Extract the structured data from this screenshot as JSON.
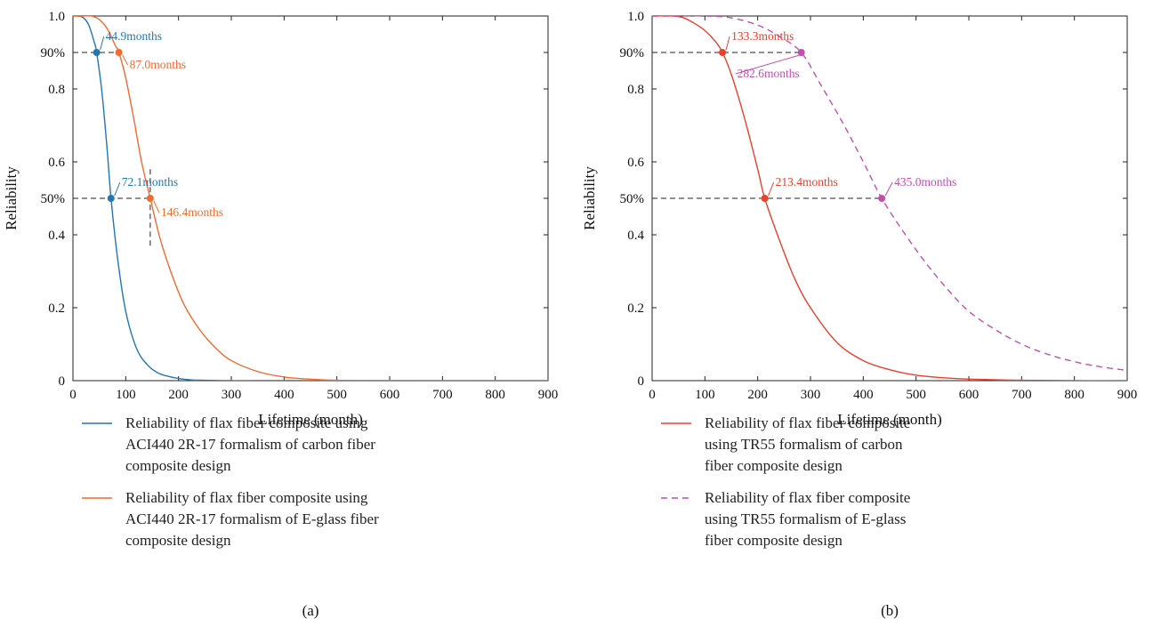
{
  "colors": {
    "blue": "#1f77b4",
    "orange": "#f26a2e",
    "red": "#e8412b",
    "magenta": "#c24fb0",
    "axis": "#222222",
    "guide": "#222222"
  },
  "chart_data": [
    {
      "type": "line",
      "subplot_label": "(a)",
      "xlabel": "Lifetime (month)",
      "ylabel": "Reliability",
      "xlim": [
        0,
        900
      ],
      "ylim": [
        0,
        1
      ],
      "xticks": [
        0,
        100,
        200,
        300,
        400,
        500,
        600,
        700,
        800,
        900
      ],
      "yticks": [
        {
          "value": 0,
          "label": "0"
        },
        {
          "value": 0.2,
          "label": "0.2"
        },
        {
          "value": 0.4,
          "label": "0.4"
        },
        {
          "value": 0.5,
          "label": "50%"
        },
        {
          "value": 0.6,
          "label": "0.6"
        },
        {
          "value": 0.8,
          "label": "0.8"
        },
        {
          "value": 0.9,
          "label": "90%"
        },
        {
          "value": 1.0,
          "label": "1.0"
        }
      ],
      "grid": false,
      "legend_position": "below plot",
      "series": [
        {
          "name": "Reliability of flax fiber composite using ACI440 2R-17 formalism of carbon fiber composite design",
          "legend_lines": [
            "Reliability of flax fiber composite using",
            "ACI440 2R-17 formalism of carbon fiber",
            "composite design"
          ],
          "color_key": "blue",
          "dash": false,
          "x": [
            0,
            10,
            20,
            30,
            40,
            44.9,
            55,
            65,
            72.1,
            85,
            100,
            120,
            140,
            160,
            180,
            200,
            225,
            250,
            300,
            350,
            900
          ],
          "y": [
            1.0,
            1.0,
            0.995,
            0.975,
            0.93,
            0.9,
            0.79,
            0.63,
            0.5,
            0.33,
            0.19,
            0.09,
            0.045,
            0.022,
            0.012,
            0.006,
            0.002,
            0.001,
            0,
            0,
            0
          ]
        },
        {
          "name": "Reliability of flax fiber composite using ACI440 2R-17 formalism of E-glass fiber composite design",
          "legend_lines": [
            "Reliability of flax fiber composite using",
            "ACI440 2R-17 formalism of E-glass fiber",
            "composite design"
          ],
          "color_key": "orange",
          "dash": false,
          "x": [
            0,
            20,
            35,
            50,
            65,
            80,
            87,
            100,
            115,
            130,
            146.4,
            165,
            185,
            210,
            240,
            270,
            300,
            350,
            400,
            450,
            500,
            600,
            900
          ],
          "y": [
            1.0,
            1.0,
            1.0,
            0.99,
            0.965,
            0.92,
            0.9,
            0.83,
            0.72,
            0.6,
            0.5,
            0.39,
            0.3,
            0.21,
            0.14,
            0.09,
            0.055,
            0.025,
            0.01,
            0.004,
            0.001,
            0,
            0
          ]
        }
      ],
      "markers": [
        {
          "x": 44.9,
          "y": 0.9,
          "series": 0,
          "label": "44.9months",
          "color_key": "blue"
        },
        {
          "x": 87.0,
          "y": 0.9,
          "series": 1,
          "label": "87.0months",
          "color_key": "orange"
        },
        {
          "x": 72.1,
          "y": 0.5,
          "series": 0,
          "label": "72.1months",
          "color_key": "blue"
        },
        {
          "x": 146.4,
          "y": 0.5,
          "series": 1,
          "label": "146.4months",
          "color_key": "orange"
        }
      ]
    },
    {
      "type": "line",
      "subplot_label": "(b)",
      "xlabel": "Lifetime (month)",
      "ylabel": "Reliability",
      "xlim": [
        0,
        900
      ],
      "ylim": [
        0,
        1
      ],
      "xticks": [
        0,
        100,
        200,
        300,
        400,
        500,
        600,
        700,
        800,
        900
      ],
      "yticks": [
        {
          "value": 0,
          "label": "0"
        },
        {
          "value": 0.2,
          "label": "0.2"
        },
        {
          "value": 0.4,
          "label": "0.4"
        },
        {
          "value": 0.5,
          "label": "50%"
        },
        {
          "value": 0.6,
          "label": "0.6"
        },
        {
          "value": 0.8,
          "label": "0.8"
        },
        {
          "value": 0.9,
          "label": "90%"
        },
        {
          "value": 1.0,
          "label": "1.0"
        }
      ],
      "grid": false,
      "legend_position": "below plot",
      "series": [
        {
          "name": "Reliability of flax fiber composite using TR55 formalism of carbon fiber composite design",
          "legend_lines": [
            "Reliability of flax fiber composite",
            "using TR55 formalism of carbon",
            "fiber composite design"
          ],
          "color_key": "red",
          "dash": false,
          "x": [
            0,
            40,
            60,
            80,
            100,
            120,
            133.3,
            150,
            175,
            200,
            213.4,
            240,
            270,
            300,
            350,
            400,
            450,
            500,
            550,
            600,
            700,
            800,
            900
          ],
          "y": [
            1.0,
            1.0,
            0.995,
            0.98,
            0.96,
            0.93,
            0.9,
            0.84,
            0.72,
            0.58,
            0.5,
            0.39,
            0.28,
            0.2,
            0.105,
            0.055,
            0.03,
            0.015,
            0.008,
            0.004,
            0.001,
            0,
            0
          ]
        },
        {
          "name": "Reliability of flax fiber composite using TR55 formalism of E-glass fiber composite design",
          "legend_lines": [
            "Reliability of flax fiber composite",
            "using TR55 formalism of E-glass",
            "fiber composite design"
          ],
          "color_key": "magenta",
          "dash": true,
          "x": [
            0,
            50,
            100,
            150,
            200,
            240,
            282.6,
            320,
            360,
            400,
            435.0,
            480,
            520,
            560,
            600,
            650,
            700,
            750,
            800,
            850,
            900
          ],
          "y": [
            1.0,
            1.0,
            1.0,
            0.995,
            0.975,
            0.945,
            0.9,
            0.81,
            0.71,
            0.6,
            0.5,
            0.4,
            0.32,
            0.25,
            0.19,
            0.14,
            0.1,
            0.072,
            0.052,
            0.038,
            0.028
          ]
        }
      ],
      "markers": [
        {
          "x": 133.3,
          "y": 0.9,
          "series": 0,
          "label": "133.3months",
          "color_key": "red"
        },
        {
          "x": 282.6,
          "y": 0.9,
          "series": 1,
          "label": "282.6months",
          "color_key": "magenta"
        },
        {
          "x": 213.4,
          "y": 0.5,
          "series": 0,
          "label": "213.4months",
          "color_key": "red"
        },
        {
          "x": 435.0,
          "y": 0.5,
          "series": 1,
          "label": "435.0months",
          "color_key": "magenta"
        }
      ]
    }
  ]
}
